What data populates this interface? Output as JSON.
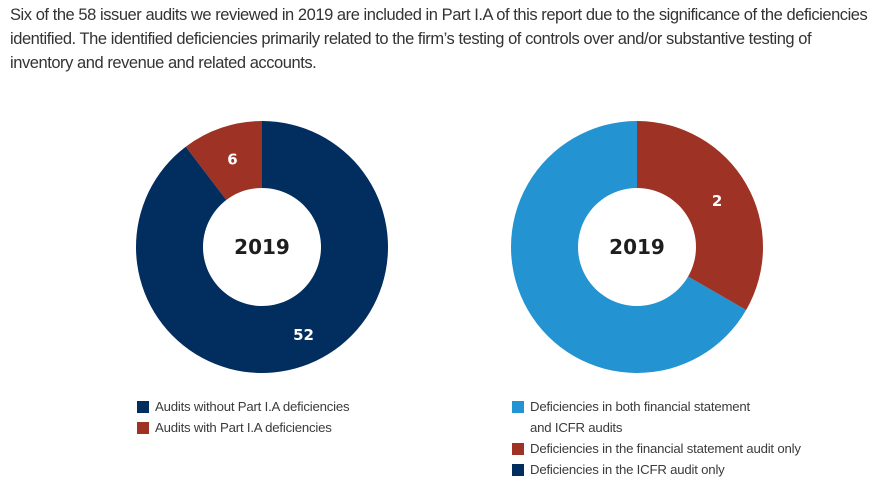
{
  "intro_text": "Six of the 58 issuer audits we reviewed in 2019 are included in Part I.A of this report due to the significance of the deficiencies identified. The identified deficiencies primarily related to the firm’s testing of controls over and/or substantive testing of inventory and revenue and related accounts.",
  "chart_data": [
    {
      "type": "pie",
      "variant": "donut",
      "center_label": "2019",
      "slices": [
        {
          "name": "Audits with Part I.A deficiencies",
          "value": 6,
          "label": "6",
          "color": "#9e3224"
        },
        {
          "name": "Audits without Part I.A deficiencies",
          "value": 52,
          "label": "52",
          "color": "#022d5f"
        }
      ],
      "legend": [
        {
          "label": "Audits without Part I.A deficiencies",
          "color": "#022d5f"
        },
        {
          "label": "Audits with Part I.A deficiencies",
          "color": "#9e3224"
        }
      ],
      "legend_position": "bottom",
      "start": "top",
      "direction": "counterclockwise-first-slice"
    },
    {
      "type": "pie",
      "variant": "donut",
      "center_label": "2019",
      "slices": [
        {
          "name": "Deficiencies in both financial statement and ICFR audits",
          "value": 4,
          "label": "4",
          "color": "#2393d1"
        },
        {
          "name": "Deficiencies in the financial statement audit only",
          "value": 2,
          "label": "2",
          "color": "#9e3224"
        },
        {
          "name": "Deficiencies in the ICFR audit only",
          "value": 0,
          "label": "",
          "color": "#022d5f"
        }
      ],
      "legend": [
        {
          "label": "Deficiencies in both financial statement and ICFR audits",
          "line1": "Deficiencies in both financial statement",
          "line2": "and ICFR audits",
          "color": "#2393d1"
        },
        {
          "label": "Deficiencies in the financial statement audit only",
          "color": "#9e3224"
        },
        {
          "label": "Deficiencies in the ICFR audit only",
          "color": "#022d5f"
        }
      ],
      "legend_position": "bottom"
    }
  ]
}
